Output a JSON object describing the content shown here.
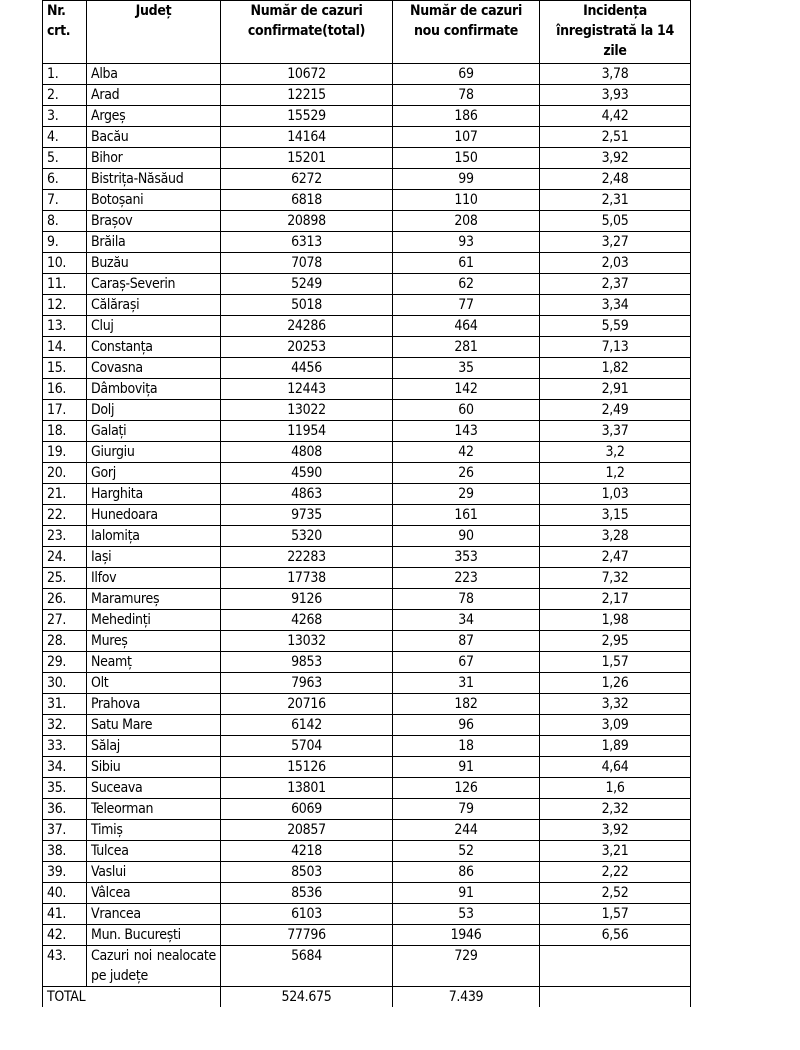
{
  "headers": [
    "Nr. crt.",
    "Județ",
    "Număr de cazuri confirmate(total)",
    "Număr de cazuri nou confirmate",
    "Incidența înregistrată la 14 zile"
  ],
  "rows": [
    [
      "1.",
      "Alba",
      "10672",
      "69",
      "3,78"
    ],
    [
      "2.",
      "Arad",
      "12215",
      "78",
      "3,93"
    ],
    [
      "3.",
      "Argeș",
      "15529",
      "186",
      "4,42"
    ],
    [
      "4.",
      "Bacău",
      "14164",
      "107",
      "2,51"
    ],
    [
      "5.",
      "Bihor",
      "15201",
      "150",
      "3,92"
    ],
    [
      "6.",
      "Bistrița-Năsăud",
      "6272",
      "99",
      "2,48"
    ],
    [
      "7.",
      "Botoșani",
      "6818",
      "110",
      "2,31"
    ],
    [
      "8.",
      "Brașov",
      "20898",
      "208",
      "5,05"
    ],
    [
      "9.",
      "Brăila",
      "6313",
      "93",
      "3,27"
    ],
    [
      "10.",
      "Buzău",
      "7078",
      "61",
      "2,03"
    ],
    [
      "11.",
      "Caraș-Severin",
      "5249",
      "62",
      "2,37"
    ],
    [
      "12.",
      "Călărași",
      "5018",
      "77",
      "3,34"
    ],
    [
      "13.",
      "Cluj",
      "24286",
      "464",
      "5,59"
    ],
    [
      "14.",
      "Constanța",
      "20253",
      "281",
      "7,13"
    ],
    [
      "15.",
      "Covasna",
      "4456",
      "35",
      "1,82"
    ],
    [
      "16.",
      "Dâmbovița",
      "12443",
      "142",
      "2,91"
    ],
    [
      "17.",
      "Dolj",
      "13022",
      "60",
      "2,49"
    ],
    [
      "18.",
      "Galați",
      "11954",
      "143",
      "3,37"
    ],
    [
      "19.",
      "Giurgiu",
      "4808",
      "42",
      "3,2"
    ],
    [
      "20.",
      "Gorj",
      "4590",
      "26",
      "1,2"
    ],
    [
      "21.",
      "Harghita",
      "4863",
      "29",
      "1,03"
    ],
    [
      "22.",
      "Hunedoara",
      "9735",
      "161",
      "3,15"
    ],
    [
      "23.",
      "Ialomița",
      "5320",
      "90",
      "3,28"
    ],
    [
      "24.",
      "Iași",
      "22283",
      "353",
      "2,47"
    ],
    [
      "25.",
      "Ilfov",
      "17738",
      "223",
      "7,32"
    ],
    [
      "26.",
      "Maramureș",
      "9126",
      "78",
      "2,17"
    ],
    [
      "27.",
      "Mehedinți",
      "4268",
      "34",
      "1,98"
    ],
    [
      "28.",
      "Mureș",
      "13032",
      "87",
      "2,95"
    ],
    [
      "29.",
      "Neamț",
      "9853",
      "67",
      "1,57"
    ],
    [
      "30.",
      "Olt",
      "7963",
      "31",
      "1,26"
    ],
    [
      "31.",
      "Prahova",
      "20716",
      "182",
      "3,32"
    ],
    [
      "32.",
      "Satu Mare",
      "6142",
      "96",
      "3,09"
    ],
    [
      "33.",
      "Sălaj",
      "5704",
      "18",
      "1,89"
    ],
    [
      "34.",
      "Sibiu",
      "15126",
      "91",
      "4,64"
    ],
    [
      "35.",
      "Suceava",
      "13801",
      "126",
      "1,6"
    ],
    [
      "36.",
      "Teleorman",
      "6069",
      "79",
      "2,32"
    ],
    [
      "37.",
      "Timiș",
      "20857",
      "244",
      "3,92"
    ],
    [
      "38.",
      "Tulcea",
      "4218",
      "52",
      "3,21"
    ],
    [
      "39.",
      "Vaslui",
      "8503",
      "86",
      "2,22"
    ],
    [
      "40.",
      "Vâlcea",
      "8536",
      "91",
      "2,52"
    ],
    [
      "41.",
      "Vrancea",
      "6103",
      "53",
      "1,57"
    ],
    [
      "42.",
      "Mun. București",
      "77796",
      "1946",
      "6,56"
    ],
    [
      "43.",
      "Cazuri noi nealocate pe județe",
      "5684",
      "729",
      ""
    ]
  ],
  "total": {
    "label": "TOTAL",
    "confirmed": "524.675",
    "new": "7.439",
    "incidence": ""
  }
}
